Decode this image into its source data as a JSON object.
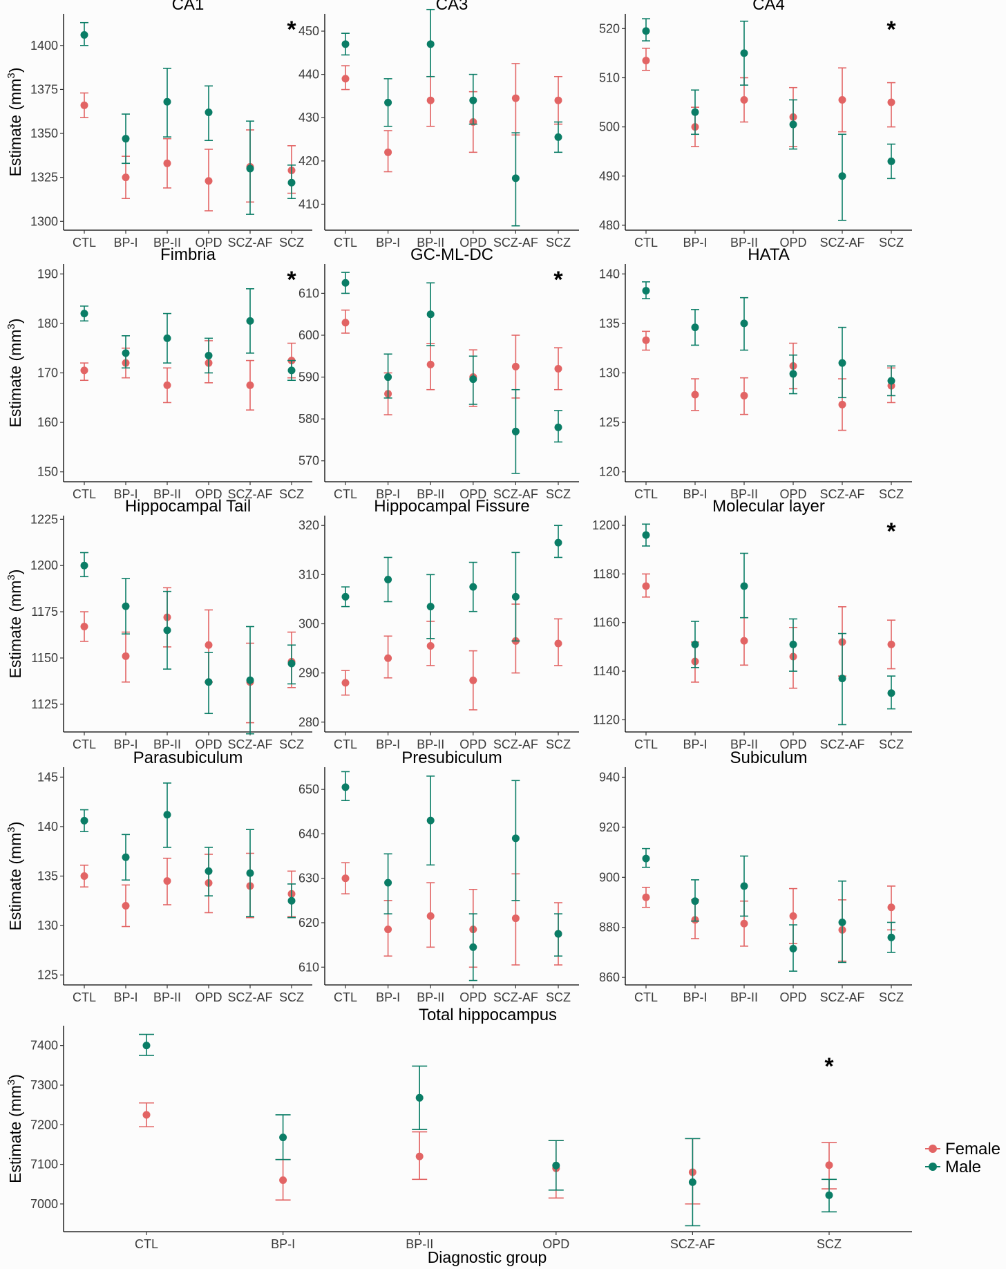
{
  "colors": {
    "female": "#e26464",
    "male": "#0a7d66"
  },
  "legend": {
    "female": "Female",
    "male": "Male"
  },
  "xlabel": "Diagnostic group",
  "ylabel_prefix": "Estimate (mm",
  "ylabel_sup": "3",
  "ylabel_suffix": ")",
  "chart_data": [
    {
      "type": "scatter",
      "title": "CA1",
      "categories": [
        "CTL",
        "BP-I",
        "BP-II",
        "OPD",
        "SCZ-AF",
        "SCZ"
      ],
      "ylim": [
        1295,
        1418
      ],
      "yticks": [
        1300,
        1325,
        1350,
        1375,
        1400
      ],
      "significant": "SCZ",
      "series": [
        {
          "name": "Female",
          "values": [
            1366,
            1325,
            1333,
            1323,
            1331,
            1329
          ],
          "lower": [
            1359,
            1313,
            1319,
            1306,
            1311,
            1316
          ],
          "upper": [
            1373,
            1337,
            1347,
            1341,
            1352,
            1343
          ]
        },
        {
          "name": "Male",
          "values": [
            1406,
            1347,
            1368,
            1362,
            1330,
            1322
          ],
          "lower": [
            1400,
            1333,
            1348,
            1346,
            1304,
            1313
          ],
          "upper": [
            1413,
            1361,
            1387,
            1377,
            1357,
            1332
          ]
        }
      ]
    },
    {
      "type": "scatter",
      "title": "CA3",
      "categories": [
        "CTL",
        "BP-I",
        "BP-II",
        "OPD",
        "SCZ-AF",
        "SCZ"
      ],
      "ylim": [
        404,
        454
      ],
      "yticks": [
        410,
        420,
        430,
        440,
        450
      ],
      "significant": "",
      "series": [
        {
          "name": "Female",
          "values": [
            439,
            422,
            434,
            429,
            434.5,
            434
          ],
          "lower": [
            436.5,
            417.5,
            428,
            422,
            426,
            428.5
          ],
          "upper": [
            442,
            427,
            439.5,
            436,
            442.5,
            439.5
          ]
        },
        {
          "name": "Male",
          "values": [
            447,
            433.5,
            447,
            434,
            416,
            425.5
          ],
          "lower": [
            444.5,
            428,
            439.5,
            428.5,
            405,
            422
          ],
          "upper": [
            449.5,
            439,
            455,
            440,
            426.5,
            429
          ]
        }
      ]
    },
    {
      "type": "scatter",
      "title": "CA4",
      "categories": [
        "CTL",
        "BP-I",
        "BP-II",
        "OPD",
        "SCZ-AF",
        "SCZ"
      ],
      "ylim": [
        479,
        523
      ],
      "yticks": [
        480,
        490,
        500,
        510,
        520
      ],
      "significant": "SCZ",
      "series": [
        {
          "name": "Female",
          "values": [
            513.5,
            500,
            505.5,
            502,
            505.5,
            505
          ],
          "lower": [
            511.5,
            496,
            501,
            496,
            499,
            500
          ],
          "upper": [
            516,
            504,
            510,
            508,
            512,
            509
          ],
          "note": ""
        },
        {
          "name": "Male",
          "values": [
            519.5,
            503,
            515,
            500.5,
            490,
            493
          ],
          "lower": [
            517.5,
            498.5,
            508.5,
            495.5,
            481,
            489.5
          ],
          "upper": [
            522,
            507.5,
            521.5,
            505.5,
            498.5,
            496.5
          ]
        }
      ]
    },
    {
      "type": "scatter",
      "title": "Fimbria",
      "categories": [
        "CTL",
        "BP-I",
        "BP-II",
        "OPD",
        "SCZ-AF",
        "SCZ"
      ],
      "ylim": [
        148,
        192
      ],
      "yticks": [
        150,
        160,
        170,
        180,
        190
      ],
      "significant": "SCZ",
      "series": [
        {
          "name": "Female",
          "values": [
            170.5,
            172,
            167.5,
            172,
            167.5,
            172.5
          ],
          "lower": [
            168.5,
            169,
            164,
            168,
            162.5,
            169
          ],
          "upper": [
            172,
            175,
            171,
            176.5,
            172.5,
            176
          ]
        },
        {
          "name": "Male",
          "values": [
            182,
            174,
            177,
            173.5,
            180.5,
            170.5
          ],
          "lower": [
            180.5,
            171,
            172,
            170,
            174,
            168.5
          ],
          "upper": [
            183.5,
            177.5,
            182,
            177,
            187,
            172.5
          ]
        }
      ]
    },
    {
      "type": "scatter",
      "title": "GC-ML-DC",
      "categories": [
        "CTL",
        "BP-I",
        "BP-II",
        "OPD",
        "SCZ-AF",
        "SCZ"
      ],
      "ylim": [
        565,
        617
      ],
      "yticks": [
        570,
        580,
        590,
        600,
        610
      ],
      "significant": "SCZ",
      "series": [
        {
          "name": "Female",
          "values": [
            603,
            586,
            593,
            590,
            592.5,
            592
          ],
          "lower": [
            600.5,
            581,
            587,
            583,
            585,
            587
          ],
          "upper": [
            606,
            591,
            598,
            596.5,
            600,
            597
          ]
        },
        {
          "name": "Male",
          "values": [
            612.5,
            590,
            605,
            589.5,
            577,
            578
          ],
          "lower": [
            610,
            585,
            597.5,
            583.5,
            567,
            574.5
          ],
          "upper": [
            615,
            595.5,
            612.5,
            595,
            587,
            582
          ]
        }
      ]
    },
    {
      "type": "scatter",
      "title": "HATA",
      "categories": [
        "CTL",
        "BP-I",
        "BP-II",
        "OPD",
        "SCZ-AF",
        "SCZ"
      ],
      "ylim": [
        119,
        141
      ],
      "yticks": [
        120,
        125,
        130,
        135,
        140
      ],
      "significant": "",
      "series": [
        {
          "name": "Female",
          "values": [
            133.3,
            127.8,
            127.7,
            130.7,
            126.8,
            128.7
          ],
          "lower": [
            132.3,
            126.2,
            125.8,
            128.4,
            124.2,
            127
          ],
          "upper": [
            134.2,
            129.4,
            129.5,
            133,
            129.4,
            130.5
          ]
        },
        {
          "name": "Male",
          "values": [
            138.3,
            134.6,
            135,
            129.9,
            131,
            129.2
          ],
          "lower": [
            137.5,
            132.8,
            132.3,
            127.9,
            127.5,
            127.7
          ],
          "upper": [
            139.2,
            136.4,
            137.6,
            131.8,
            134.6,
            130.7
          ]
        }
      ]
    },
    {
      "type": "scatter",
      "title": "Hippocampal Tail",
      "categories": [
        "CTL",
        "BP-I",
        "BP-II",
        "OPD",
        "SCZ-AF",
        "SCZ"
      ],
      "ylim": [
        1110,
        1227
      ],
      "yticks": [
        1125,
        1150,
        1175,
        1200,
        1225
      ],
      "significant": "",
      "series": [
        {
          "name": "Female",
          "values": [
            1167,
            1151,
            1172,
            1157,
            1137,
            1148
          ],
          "lower": [
            1159,
            1137,
            1156,
            1137,
            1115,
            1134
          ],
          "upper": [
            1175,
            1164,
            1188,
            1176,
            1158,
            1164
          ]
        },
        {
          "name": "Male",
          "values": [
            1200,
            1178,
            1165,
            1137,
            1138,
            1147
          ],
          "lower": [
            1194,
            1163,
            1144,
            1120,
            1109,
            1136
          ],
          "upper": [
            1207,
            1193,
            1186,
            1153,
            1167,
            1157
          ]
        }
      ]
    },
    {
      "type": "scatter",
      "title": "Hippocampal Fissure",
      "categories": [
        "CTL",
        "BP-I",
        "BP-II",
        "OPD",
        "SCZ-AF",
        "SCZ"
      ],
      "ylim": [
        278,
        322
      ],
      "yticks": [
        280,
        290,
        300,
        310,
        320
      ],
      "significant": "",
      "series": [
        {
          "name": "Female",
          "values": [
            288,
            293,
            295.5,
            288.5,
            296.5,
            296
          ],
          "lower": [
            285.5,
            289,
            291.5,
            282.5,
            290,
            291.5
          ],
          "upper": [
            290.5,
            297.5,
            300.5,
            294.5,
            304,
            301
          ]
        },
        {
          "name": "Male",
          "values": [
            305.5,
            309,
            303.5,
            307.5,
            305.5,
            316.5
          ],
          "lower": [
            303.5,
            304.5,
            297,
            302.5,
            296.5,
            313.5
          ],
          "upper": [
            307.5,
            313.5,
            310,
            312.5,
            314.5,
            320
          ]
        }
      ]
    },
    {
      "type": "scatter",
      "title": "Molecular layer",
      "categories": [
        "CTL",
        "BP-I",
        "BP-II",
        "OPD",
        "SCZ-AF",
        "SCZ"
      ],
      "ylim": [
        1115,
        1204
      ],
      "yticks": [
        1120,
        1140,
        1160,
        1180,
        1200
      ],
      "significant": "SCZ",
      "series": [
        {
          "name": "Female",
          "values": [
            1175,
            1144,
            1152.5,
            1146,
            1152,
            1151
          ],
          "lower": [
            1170.5,
            1135.5,
            1142.5,
            1133,
            1138,
            1141
          ],
          "upper": [
            1180,
            1152,
            1162,
            1158,
            1166.5,
            1161
          ]
        },
        {
          "name": "Male",
          "values": [
            1196,
            1151,
            1175,
            1151,
            1137,
            1131
          ],
          "lower": [
            1191.5,
            1141.5,
            1162,
            1140,
            1118,
            1124.5
          ],
          "upper": [
            1200.5,
            1160.5,
            1188.5,
            1161.5,
            1155.5,
            1138
          ]
        }
      ]
    },
    {
      "type": "scatter",
      "title": "Parasubiculum",
      "categories": [
        "CTL",
        "BP-I",
        "BP-II",
        "OPD",
        "SCZ-AF",
        "SCZ"
      ],
      "ylim": [
        124,
        146
      ],
      "yticks": [
        125,
        130,
        135,
        140,
        145
      ],
      "significant": "",
      "series": [
        {
          "name": "Female",
          "values": [
            135,
            132,
            134.5,
            134.3,
            134,
            133.2
          ],
          "lower": [
            133.9,
            129.9,
            132.1,
            131.3,
            130.8,
            130.9
          ],
          "upper": [
            136.1,
            134.1,
            136.8,
            137.2,
            137.3,
            135.5
          ]
        },
        {
          "name": "Male",
          "values": [
            140.6,
            136.9,
            141.2,
            135.5,
            135.3,
            132.5
          ],
          "lower": [
            139.5,
            134.6,
            137.9,
            133,
            130.9,
            130.8
          ],
          "upper": [
            141.7,
            139.2,
            144.4,
            137.9,
            139.7,
            134.2
          ]
        }
      ]
    },
    {
      "type": "scatter",
      "title": "Presubiculum",
      "categories": [
        "CTL",
        "BP-I",
        "BP-II",
        "OPD",
        "SCZ-AF",
        "SCZ"
      ],
      "ylim": [
        606,
        655
      ],
      "yticks": [
        610,
        620,
        630,
        640,
        650
      ],
      "significant": "",
      "series": [
        {
          "name": "Female",
          "values": [
            630,
            618.5,
            621.5,
            618.5,
            621,
            617.5
          ],
          "lower": [
            626.5,
            612.5,
            614.5,
            610,
            610.5,
            610.5
          ],
          "upper": [
            633.5,
            625,
            629,
            627.5,
            631,
            624.5
          ]
        },
        {
          "name": "Male",
          "values": [
            650.5,
            629,
            643,
            614.5,
            639,
            617.5
          ],
          "lower": [
            647.5,
            622,
            633,
            607,
            625,
            612.5
          ],
          "upper": [
            654,
            635.5,
            653,
            622,
            652,
            622
          ]
        }
      ]
    },
    {
      "type": "scatter",
      "title": "Subiculum",
      "categories": [
        "CTL",
        "BP-I",
        "BP-II",
        "OPD",
        "SCZ-AF",
        "SCZ"
      ],
      "ylim": [
        857,
        944
      ],
      "yticks": [
        860,
        880,
        900,
        920,
        940
      ],
      "significant": "",
      "series": [
        {
          "name": "Female",
          "values": [
            892,
            883,
            881.5,
            884.5,
            879,
            888
          ],
          "lower": [
            888,
            875.5,
            872.5,
            873.5,
            866.5,
            879
          ],
          "upper": [
            896,
            891,
            890.5,
            895.5,
            891,
            896.5
          ]
        },
        {
          "name": "Male",
          "values": [
            907.5,
            890.5,
            896.5,
            871.5,
            882,
            876
          ],
          "lower": [
            904,
            882.5,
            884.5,
            862.5,
            866,
            870
          ],
          "upper": [
            911.5,
            899,
            908.5,
            881,
            898.5,
            882
          ]
        }
      ]
    },
    {
      "type": "scatter",
      "title": "Total hippocampus",
      "categories": [
        "CTL",
        "BP-I",
        "BP-II",
        "OPD",
        "SCZ-AF",
        "SCZ"
      ],
      "ylim": [
        6930,
        7450
      ],
      "yticks": [
        7000,
        7100,
        7200,
        7300,
        7400
      ],
      "significant": "SCZ",
      "series": [
        {
          "name": "Female",
          "values": [
            7225,
            7060,
            7120,
            7090,
            7080,
            7098
          ],
          "lower": [
            7195,
            7010,
            7062,
            7015,
            7000,
            7038
          ],
          "upper": [
            7255,
            7112,
            7182,
            7160,
            7165,
            7155
          ]
        },
        {
          "name": "Male",
          "values": [
            7400,
            7168,
            7268,
            7097,
            7055,
            7022
          ],
          "lower": [
            7375,
            7112,
            7188,
            7035,
            6945,
            6980
          ],
          "upper": [
            7428,
            7225,
            7348,
            7160,
            7165,
            7062
          ]
        }
      ]
    }
  ]
}
